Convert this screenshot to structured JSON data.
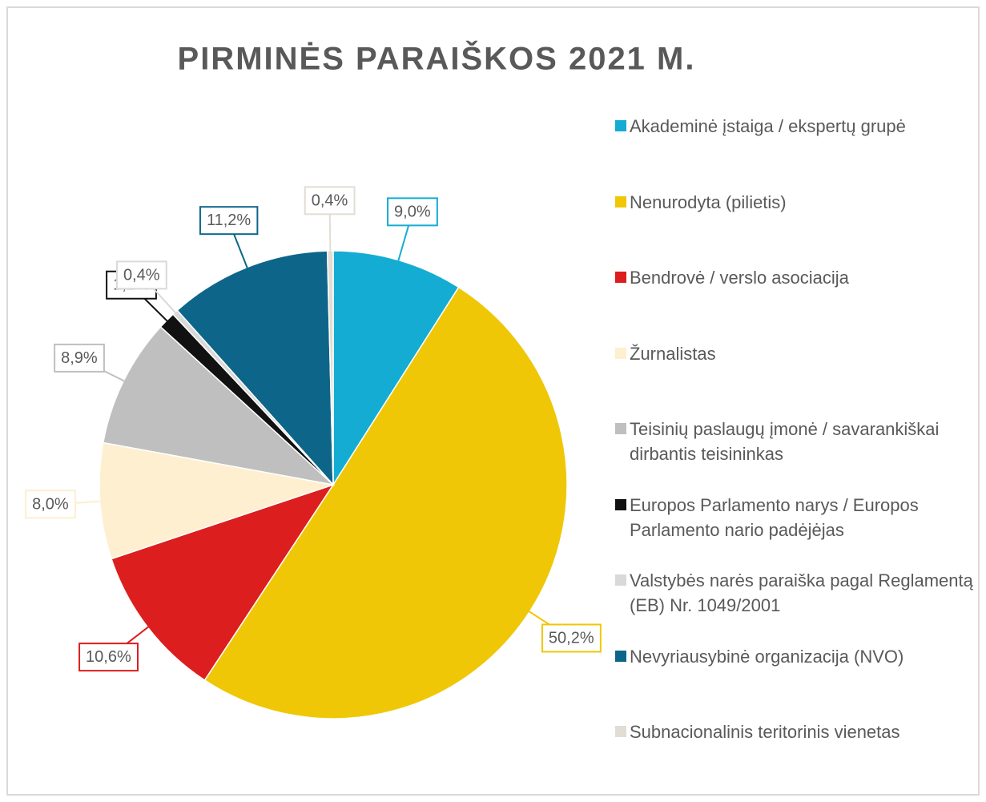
{
  "chart_data": {
    "type": "pie",
    "title": "PIRMINĖS PARAIŠKOS 2021 M.",
    "categories": [
      "Akademinė įstaiga / ekspertų grupė",
      "Nenurodyta (pilietis)",
      "Bendrovė / verslo asociacija",
      "Žurnalistas",
      "Teisinių paslaugų įmonė / savarankiškai dirbantis teisininkas",
      "Europos Parlamento narys / Europos Parlamento nario padėjėjas",
      "Valstybės narės paraiška pagal Reglamentą (EB) Nr. 1049/2001",
      "Nevyriausybinė organizacija (NVO)",
      "Subnacionalinis teritorinis vienetas"
    ],
    "values": [
      9.0,
      50.2,
      10.6,
      8.0,
      8.9,
      1.2,
      0.4,
      11.2,
      0.4
    ],
    "value_labels": [
      "9,0%",
      "50,2%",
      "10,6%",
      "8,0%",
      "8,9%",
      "1,2%",
      "0,4%",
      "11,2%",
      "0,4%"
    ],
    "colors": [
      "#14acd3",
      "#efc707",
      "#dc1e1e",
      "#fdefd0",
      "#bfbfbf",
      "#111111",
      "#d9d9d9",
      "#0d6689",
      "#e2ddd4"
    ],
    "legend": "right"
  }
}
